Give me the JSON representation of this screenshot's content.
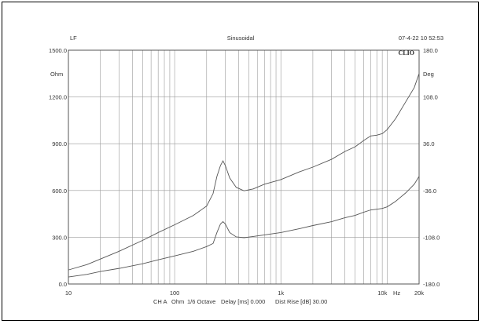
{
  "header": {
    "left": "LF",
    "center": "Sinusoidal",
    "right": "07-4-22 10 52:53",
    "brand": "CLIO"
  },
  "footer": {
    "channel": "CH A",
    "unit": "Ohm",
    "smoothing": "1/6 Octave",
    "delay": "Delay [ms] 0.000",
    "dist_rise": "Dist Rise [dB] 30.00"
  },
  "chart_data": {
    "type": "line",
    "xscale": "log",
    "xlim": [
      10,
      20000
    ],
    "ylim": [
      0,
      1500
    ],
    "y2lim": [
      -180,
      180
    ],
    "xlabel_unit": "Hz",
    "ylabel_unit": "Ohm",
    "y2label_unit": "Deg",
    "xticks": [
      10,
      100,
      1000,
      10000,
      20000
    ],
    "xtick_labels": [
      "10",
      "100",
      "1k",
      "10k",
      "20k"
    ],
    "yticks": [
      0,
      300,
      600,
      900,
      1200,
      1500
    ],
    "ytick_labels": [
      "0.0",
      "300.0",
      "600.0",
      "900.0",
      "1200.0",
      "1500.0"
    ],
    "y2ticks": [
      -180,
      -108,
      -36,
      36,
      108,
      180
    ],
    "y2tick_labels": [
      "-180.0",
      "-108.0",
      "-36.0",
      "36.0",
      "108.0",
      "180.0"
    ],
    "grid": true,
    "series": [
      {
        "x": [
          10,
          15,
          20,
          30,
          50,
          70,
          100,
          150,
          200,
          230,
          250,
          270,
          285,
          300,
          330,
          380,
          450,
          550,
          700,
          1000,
          1500,
          2000,
          3000,
          4000,
          5000,
          6000,
          7000,
          8000,
          9000,
          10000,
          12000,
          15000,
          18000,
          20000
        ],
        "values": [
          90,
          125,
          160,
          210,
          280,
          330,
          380,
          440,
          500,
          580,
          690,
          760,
          790,
          760,
          680,
          620,
          598,
          610,
          640,
          670,
          720,
          750,
          800,
          850,
          880,
          920,
          950,
          955,
          965,
          990,
          1060,
          1170,
          1260,
          1350
        ]
      },
      {
        "x": [
          10,
          15,
          20,
          30,
          50,
          70,
          100,
          150,
          200,
          230,
          250,
          270,
          285,
          300,
          330,
          380,
          450,
          550,
          700,
          1000,
          1500,
          2000,
          3000,
          4000,
          5000,
          6000,
          7000,
          8000,
          9000,
          10000,
          12000,
          15000,
          18000,
          20000
        ],
        "values": [
          45,
          62,
          80,
          100,
          130,
          155,
          180,
          210,
          240,
          260,
          330,
          385,
          400,
          385,
          330,
          302,
          297,
          305,
          315,
          330,
          355,
          375,
          400,
          425,
          440,
          460,
          475,
          480,
          485,
          495,
          530,
          585,
          640,
          690
        ]
      }
    ]
  }
}
